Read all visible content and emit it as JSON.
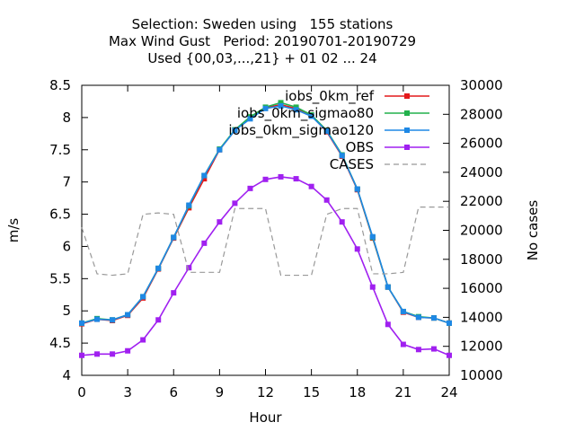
{
  "chart_data": {
    "type": "line",
    "title_lines": [
      "Selection: Sweden using   155 stations",
      "Max Wind Gust   Period: 20190701-20190729",
      "Used {00,03,...,21} + 01 02 ... 24"
    ],
    "xlabel": "Hour",
    "ylabel": "m/s",
    "y2label": "No cases",
    "xlim": [
      0,
      24
    ],
    "ylim": [
      4,
      8.5
    ],
    "y2lim": [
      10000,
      30000
    ],
    "xticks": [
      0,
      3,
      6,
      9,
      12,
      15,
      18,
      21,
      24
    ],
    "yticks": [
      4,
      4.5,
      5,
      5.5,
      6,
      6.5,
      7,
      7.5,
      8,
      8.5
    ],
    "y2ticks": [
      10000,
      12000,
      14000,
      16000,
      18000,
      20000,
      22000,
      24000,
      26000,
      28000,
      30000
    ],
    "grid": false,
    "legend_position": "top-right",
    "x": [
      0,
      1,
      2,
      3,
      4,
      5,
      6,
      7,
      8,
      9,
      10,
      11,
      12,
      13,
      14,
      15,
      16,
      17,
      18,
      19,
      20,
      21,
      22,
      23,
      24
    ],
    "series": [
      {
        "name": "iobs_0km_ref",
        "color": "#e41a1c",
        "marker": "square",
        "axis": "left",
        "values": [
          4.8,
          4.87,
          4.85,
          4.93,
          5.2,
          5.65,
          6.13,
          6.6,
          7.05,
          7.5,
          7.8,
          8.0,
          8.15,
          8.2,
          8.14,
          8.03,
          7.78,
          7.4,
          6.88,
          6.13,
          5.37,
          4.98,
          4.9,
          4.89,
          4.81
        ]
      },
      {
        "name": "iobs_0km_sigmao80",
        "color": "#22b14c",
        "marker": "square",
        "axis": "left",
        "values": [
          4.81,
          4.88,
          4.86,
          4.94,
          5.22,
          5.66,
          6.14,
          6.63,
          7.1,
          7.51,
          7.81,
          8.01,
          8.16,
          8.23,
          8.16,
          8.04,
          7.8,
          7.42,
          6.89,
          6.14,
          5.37,
          4.99,
          4.91,
          4.89,
          4.81
        ]
      },
      {
        "name": "iobs_0km_sigmao120",
        "color": "#1e88e5",
        "marker": "square",
        "axis": "left",
        "values": [
          4.81,
          4.87,
          4.86,
          4.94,
          5.22,
          5.66,
          6.14,
          6.64,
          7.1,
          7.5,
          7.8,
          7.98,
          8.14,
          8.18,
          8.12,
          8.02,
          7.79,
          7.41,
          6.89,
          6.15,
          5.37,
          4.99,
          4.9,
          4.89,
          4.81
        ]
      },
      {
        "name": "OBS",
        "color": "#a020f0",
        "marker": "square",
        "axis": "left",
        "values": [
          4.31,
          4.33,
          4.33,
          4.38,
          4.55,
          4.86,
          5.28,
          5.67,
          6.05,
          6.38,
          6.67,
          6.9,
          7.04,
          7.08,
          7.05,
          6.93,
          6.72,
          6.38,
          5.96,
          5.37,
          4.79,
          4.48,
          4.4,
          4.41,
          4.31
        ]
      },
      {
        "name": "CASES",
        "color": "#999999",
        "dashed": true,
        "axis": "right",
        "values": [
          20200,
          17000,
          16900,
          17000,
          21100,
          21200,
          21100,
          17100,
          17100,
          17100,
          21500,
          21500,
          21500,
          16900,
          16900,
          16900,
          21100,
          21500,
          21500,
          17000,
          17000,
          17100,
          21600,
          21600,
          21600
        ]
      }
    ]
  }
}
